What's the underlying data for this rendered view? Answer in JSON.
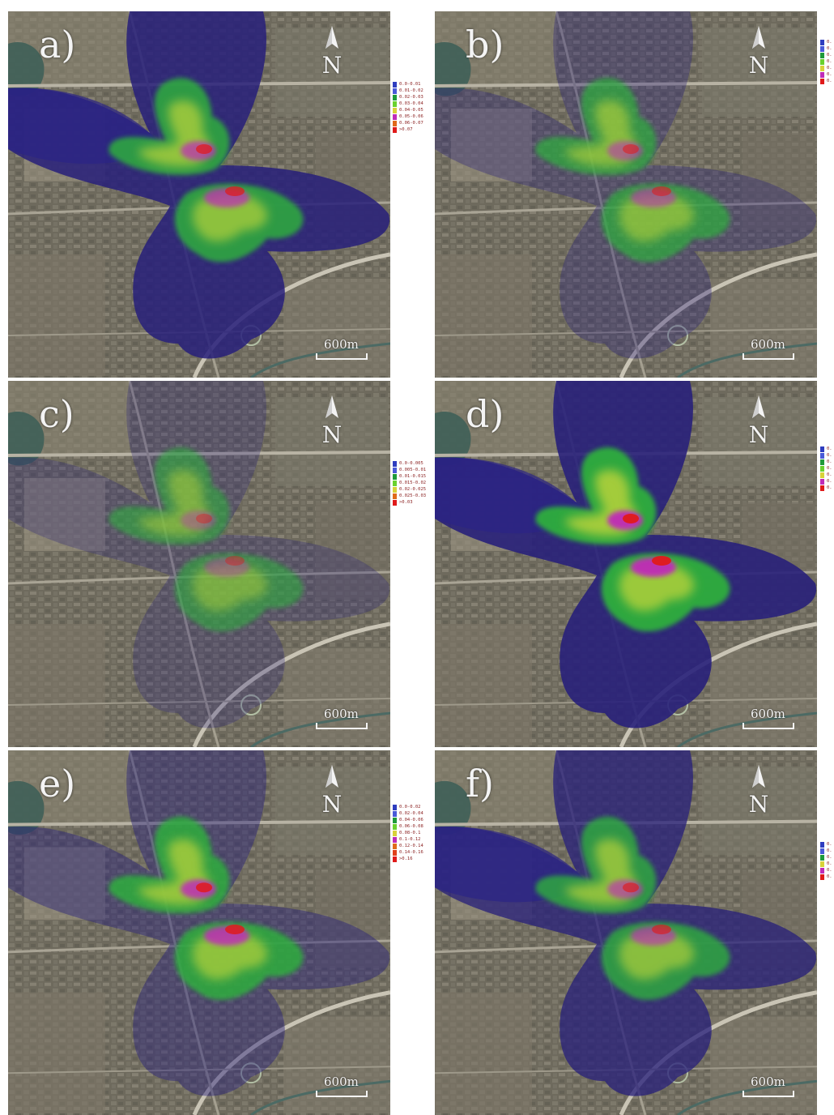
{
  "panels": [
    {
      "label": "a)",
      "north": "N",
      "scale": "600m",
      "legend": [
        {
          "text": "0.0-0.01",
          "color": "#2f3dbf"
        },
        {
          "text": "0.01-0.02",
          "color": "#4a5ad8"
        },
        {
          "text": "0.02-0.03",
          "color": "#1f9a3a"
        },
        {
          "text": "0.03-0.04",
          "color": "#6ad12e"
        },
        {
          "text": "0.04-0.05",
          "color": "#d8d23a"
        },
        {
          "text": "0.05-0.06",
          "color": "#c02bb8"
        },
        {
          "text": "0.06-0.07",
          "color": "#e06a1a"
        },
        {
          "text": ">0.07",
          "color": "#e01a1a"
        }
      ]
    },
    {
      "label": "b)",
      "north": "N",
      "scale": "600m",
      "legend": [
        {
          "text": "0.",
          "color": "#2f3dbf"
        },
        {
          "text": "0.",
          "color": "#4a5ad8"
        },
        {
          "text": "0.",
          "color": "#1f9a3a"
        },
        {
          "text": "0.",
          "color": "#6ad12e"
        },
        {
          "text": "0.",
          "color": "#d8d23a"
        },
        {
          "text": "0.",
          "color": "#c02bb8"
        },
        {
          "text": "0.",
          "color": "#e01a1a"
        }
      ]
    },
    {
      "label": "c)",
      "north": "N",
      "scale": "600m",
      "legend": [
        {
          "text": "0.0-0.005",
          "color": "#2f3dbf"
        },
        {
          "text": "0.005-0.01",
          "color": "#4a5ad8"
        },
        {
          "text": "0.01-0.015",
          "color": "#1f9a3a"
        },
        {
          "text": "0.015-0.02",
          "color": "#6ad12e"
        },
        {
          "text": "0.02-0.025",
          "color": "#d8d23a"
        },
        {
          "text": "0.025-0.03",
          "color": "#e06a1a"
        },
        {
          "text": ">0.03",
          "color": "#e01a1a"
        }
      ]
    },
    {
      "label": "d)",
      "north": "N",
      "scale": "600m",
      "legend": [
        {
          "text": "0.",
          "color": "#2f3dbf"
        },
        {
          "text": "0.",
          "color": "#4a5ad8"
        },
        {
          "text": "0.",
          "color": "#1f9a3a"
        },
        {
          "text": "0.",
          "color": "#6ad12e"
        },
        {
          "text": "0.",
          "color": "#d8d23a"
        },
        {
          "text": "0.",
          "color": "#c02bb8"
        },
        {
          "text": "0.",
          "color": "#e01a1a"
        }
      ]
    },
    {
      "label": "e)",
      "north": "N",
      "scale": "600m",
      "legend": [
        {
          "text": "0.0-0.02",
          "color": "#2f3dbf"
        },
        {
          "text": "0.02-0.04",
          "color": "#4a5ad8"
        },
        {
          "text": "0.04-0.06",
          "color": "#1f9a3a"
        },
        {
          "text": "0.06-0.08",
          "color": "#6ad12e"
        },
        {
          "text": "0.08-0.1",
          "color": "#d8d23a"
        },
        {
          "text": "0.1-0.12",
          "color": "#c02bb8"
        },
        {
          "text": "0.12-0.14",
          "color": "#e06a1a"
        },
        {
          "text": "0.14-0.16",
          "color": "#e0401a"
        },
        {
          "text": ">0.16",
          "color": "#e01a1a"
        }
      ]
    },
    {
      "label": "f)",
      "north": "N",
      "scale": "600m",
      "legend": [
        {
          "text": "0.",
          "color": "#2f3dbf"
        },
        {
          "text": "0.",
          "color": "#4a5ad8"
        },
        {
          "text": "0.",
          "color": "#1f9a3a"
        },
        {
          "text": "0.",
          "color": "#d8d23a"
        },
        {
          "text": "0.",
          "color": "#c02bb8"
        },
        {
          "text": "0.",
          "color": "#e01a1a"
        }
      ]
    }
  ]
}
